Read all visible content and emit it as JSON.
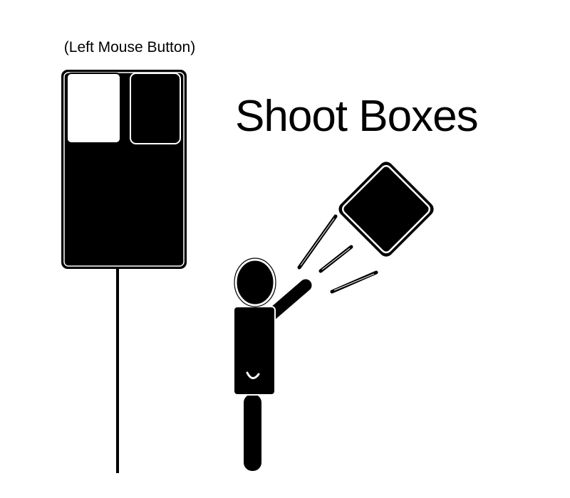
{
  "mouse": {
    "caption": "(Left Mouse Button)",
    "highlighted_button": "left"
  },
  "instruction": {
    "label": "Shoot Boxes"
  },
  "icons": {
    "mouse": "mouse-icon",
    "figure": "stick-figure-icon",
    "box": "box-icon",
    "motion": "motion-lines-icon"
  },
  "colors": {
    "ink": "#000000",
    "paper": "#ffffff"
  }
}
